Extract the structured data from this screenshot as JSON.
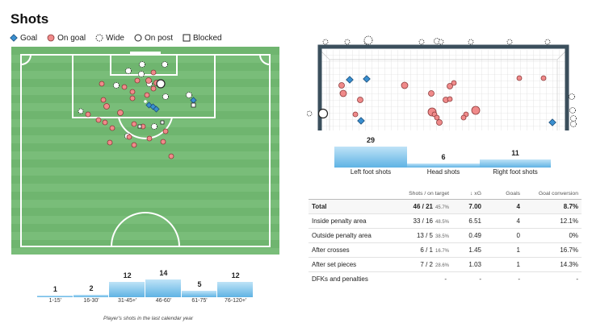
{
  "title": "Shots",
  "legend": [
    {
      "label": "Goal",
      "icon": "diamond-icon"
    },
    {
      "label": "On goal",
      "icon": "red-circle-icon"
    },
    {
      "label": "Wide",
      "icon": "dashed-circle-icon"
    },
    {
      "label": "On post",
      "icon": "open-circle-icon"
    },
    {
      "label": "Blocked",
      "icon": "square-icon"
    }
  ],
  "colors": {
    "goal": "#3a8fd0",
    "on_goal": "#f08a8a",
    "pitch": "#6db36d",
    "bar": "#5fb3e4"
  },
  "foot_shots": [
    {
      "label": "Left foot shots",
      "value": 29
    },
    {
      "label": "Head shots",
      "value": 6
    },
    {
      "label": "Right foot shots",
      "value": 11
    }
  ],
  "stats": {
    "headers": [
      "",
      "Shots / on target",
      "↓ xG",
      "Goals",
      "Goal conversion"
    ],
    "rows": [
      {
        "label": "Total",
        "shots": "46 / 21",
        "pct": "45.7%",
        "xg": "7.00",
        "goals": "4",
        "conv": "8.7%"
      },
      {
        "label": "Inside penalty area",
        "shots": "33 / 16",
        "pct": "48.5%",
        "xg": "6.51",
        "goals": "4",
        "conv": "12.1%"
      },
      {
        "label": "Outside penalty area",
        "shots": "13 / 5",
        "pct": "38.5%",
        "xg": "0.49",
        "goals": "0",
        "conv": "0%"
      },
      {
        "label": "After crosses",
        "shots": "6 / 1",
        "pct": "16.7%",
        "xg": "1.45",
        "goals": "1",
        "conv": "16.7%"
      },
      {
        "label": "After set pieces",
        "shots": "7 / 2",
        "pct": "28.6%",
        "xg": "1.03",
        "goals": "1",
        "conv": "14.3%"
      },
      {
        "label": "DFKs and penalties",
        "shots": "-",
        "pct": "",
        "xg": "-",
        "goals": "-",
        "conv": "-"
      }
    ]
  },
  "time_shots": [
    {
      "label": "1-15'",
      "value": 1
    },
    {
      "label": "16-30'",
      "value": 2
    },
    {
      "label": "31-45+'",
      "value": 12
    },
    {
      "label": "46-60'",
      "value": 14
    },
    {
      "label": "61-75'",
      "value": 5
    },
    {
      "label": "76-120+'",
      "value": 12
    }
  ],
  "caption": "Player's shots in the last calendar year",
  "chart_data": [
    {
      "type": "bar",
      "categories": [
        "Left foot shots",
        "Head shots",
        "Right foot shots"
      ],
      "values": [
        29,
        6,
        11
      ]
    },
    {
      "type": "bar",
      "categories": [
        "1-15'",
        "16-30'",
        "31-45+'",
        "46-60'",
        "61-75'",
        "76-120+'"
      ],
      "values": [
        1,
        2,
        12,
        14,
        5,
        12
      ]
    }
  ]
}
